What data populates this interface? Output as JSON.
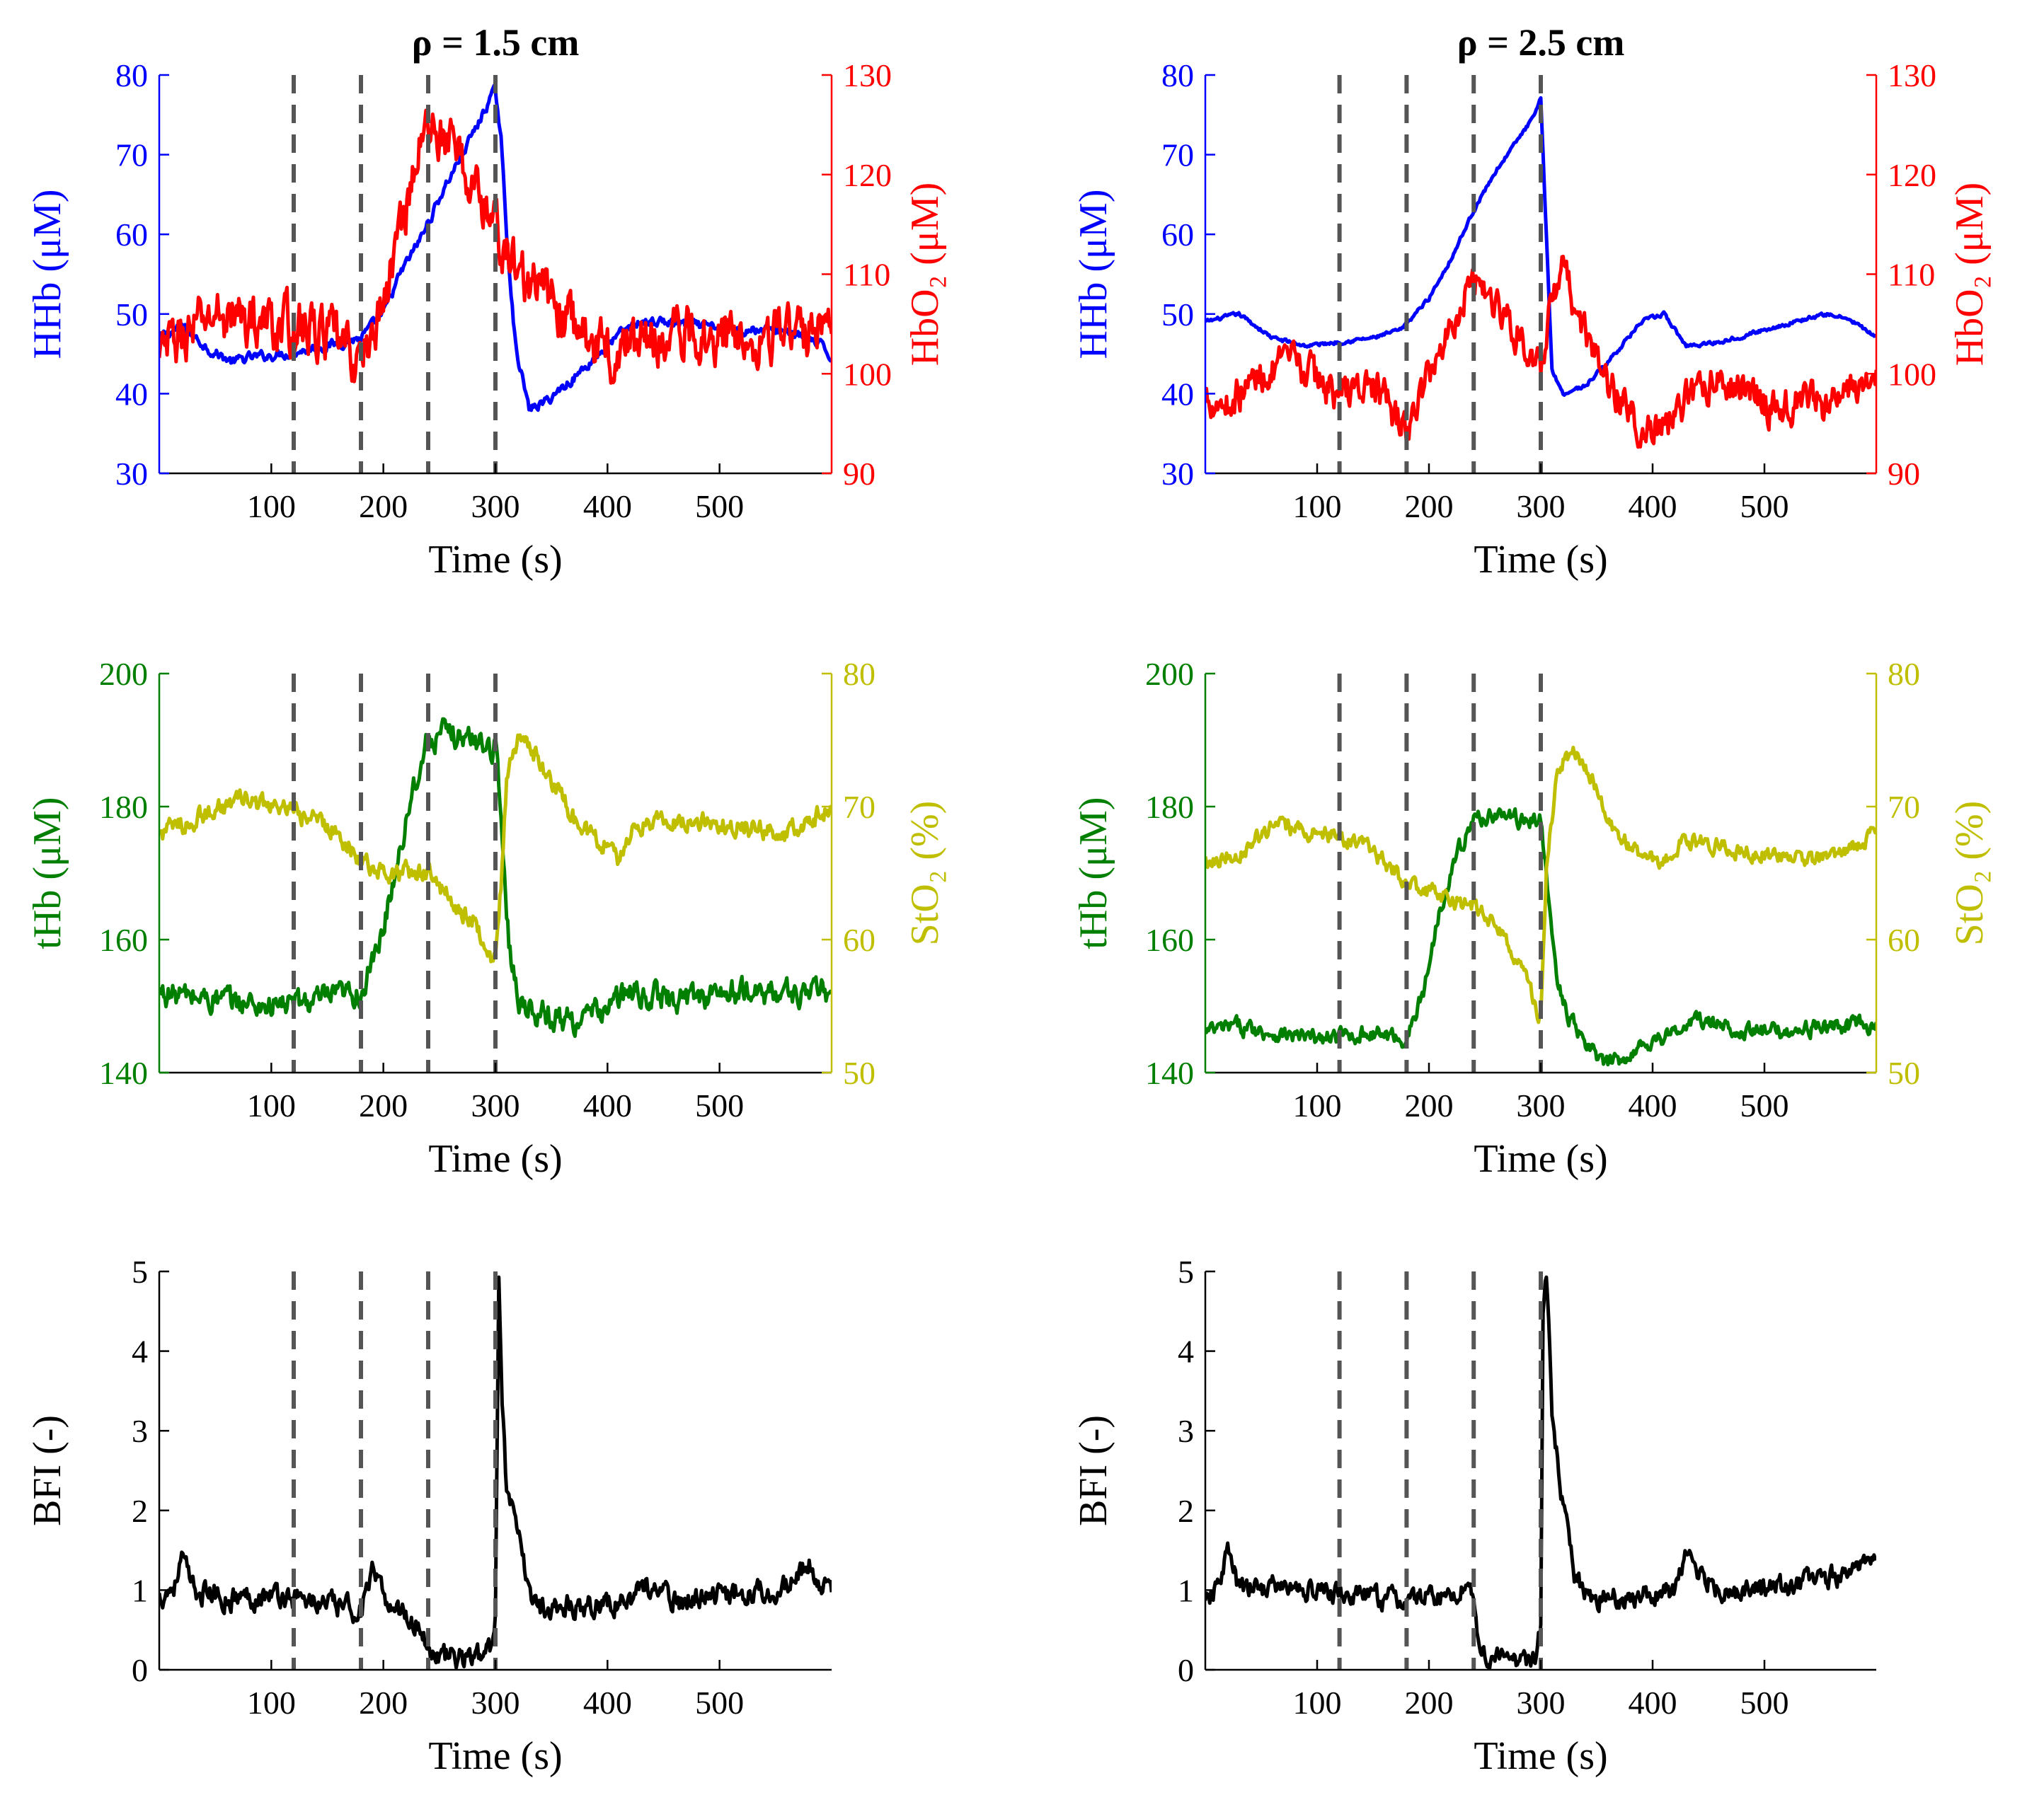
{
  "colors": {
    "hhb": "#0000ff",
    "hbo2": "#ff0000",
    "thb": "#007f00",
    "sto2": "#bfbf00",
    "bfi": "#000000",
    "marker": "#555555",
    "axis": "#000000"
  },
  "chart_data": [
    {
      "id": "top-left",
      "type": "line",
      "title": "ρ = 1.5 cm",
      "xlabel": "Time (s)",
      "xlim": [
        0,
        600
      ],
      "xticks": [
        100,
        200,
        300,
        400,
        500
      ],
      "ylabel_left": "HHb (μM)",
      "ylim_left": [
        30,
        80
      ],
      "yticks_left": [
        30,
        40,
        50,
        60,
        70,
        80
      ],
      "ylabel_right": "HbO₂ (μM)",
      "ylim_right": [
        90,
        130
      ],
      "yticks_right": [
        90,
        100,
        110,
        120,
        130
      ],
      "markers": [
        120,
        180,
        240,
        300
      ],
      "series": [
        {
          "name": "HHb",
          "axis": "left",
          "color": "hhb",
          "noise": 0.5,
          "x": [
            0,
            20,
            45,
            65,
            80,
            110,
            150,
            180,
            200,
            215,
            235,
            255,
            270,
            285,
            295,
            300,
            305,
            310,
            318,
            330,
            345,
            370,
            400,
            415,
            430,
            450,
            480,
            520,
            560,
            590,
            600
          ],
          "y": [
            47,
            48.5,
            45.5,
            44,
            44.5,
            45,
            46,
            47,
            50,
            55,
            60,
            66,
            70,
            74,
            77,
            78,
            72,
            60,
            46,
            38,
            39,
            42,
            46,
            48,
            49,
            49,
            48.5,
            48,
            48,
            46,
            44.5
          ]
        },
        {
          "name": "HbO₂",
          "axis": "right",
          "color": "hbo2",
          "noise": 2.2,
          "x": [
            0,
            10,
            50,
            100,
            150,
            180,
            200,
            220,
            235,
            245,
            260,
            275,
            290,
            310,
            330,
            345,
            360,
            380,
            400,
            420,
            450,
            500,
            550,
            580,
            600
          ],
          "y": [
            101,
            103,
            106,
            105,
            104,
            101,
            107,
            117,
            124,
            125,
            123,
            120,
            117,
            112,
            109,
            108,
            106,
            104,
            102,
            103,
            104,
            104,
            104,
            104,
            106
          ]
        }
      ]
    },
    {
      "id": "top-right",
      "type": "line",
      "title": "ρ = 2.5 cm",
      "xlabel": "Time (s)",
      "xlim": [
        0,
        600
      ],
      "xticks": [
        100,
        200,
        300,
        400,
        500
      ],
      "ylabel_left": "HHb (μM)",
      "ylim_left": [
        30,
        80
      ],
      "yticks_left": [
        30,
        40,
        50,
        60,
        70,
        80
      ],
      "ylabel_right": "HbO₂ (μM)",
      "ylim_right": [
        90,
        130
      ],
      "yticks_right": [
        90,
        100,
        110,
        120,
        130
      ],
      "markers": [
        120,
        180,
        240,
        300
      ],
      "series": [
        {
          "name": "HHb",
          "axis": "left",
          "color": "hhb",
          "noise": 0.2,
          "x": [
            0,
            30,
            60,
            90,
            120,
            150,
            175,
            200,
            220,
            240,
            260,
            280,
            295,
            300,
            305,
            310,
            320,
            340,
            360,
            390,
            410,
            430,
            460,
            500,
            540,
            560,
            580,
            600
          ],
          "y": [
            49,
            50,
            47,
            46,
            46.5,
            47,
            48,
            52,
            57,
            63,
            68,
            72,
            75,
            77,
            60,
            43,
            40,
            41,
            44,
            49,
            50,
            46,
            46.5,
            48,
            49.5,
            50,
            49,
            47
          ]
        },
        {
          "name": "HbO₂",
          "axis": "right",
          "color": "hbo2",
          "noise": 1.5,
          "x": [
            0,
            20,
            50,
            80,
            120,
            150,
            180,
            200,
            220,
            240,
            260,
            280,
            300,
            310,
            320,
            340,
            360,
            380,
            400,
            420,
            450,
            480,
            500,
            530,
            560,
            580,
            600
          ],
          "y": [
            98,
            97,
            100,
            101,
            98,
            99,
            94,
            100,
            105,
            110,
            107,
            104,
            100,
            107,
            110,
            104,
            99,
            96,
            94,
            96,
            99,
            99,
            97,
            97,
            97,
            98,
            101
          ]
        }
      ]
    },
    {
      "id": "mid-left",
      "type": "line",
      "title": "",
      "xlabel": "Time (s)",
      "xlim": [
        0,
        600
      ],
      "xticks": [
        100,
        200,
        300,
        400,
        500
      ],
      "ylabel_left": "tHb (μM)",
      "ylim_left": [
        140,
        200
      ],
      "yticks_left": [
        140,
        160,
        180,
        200
      ],
      "ylabel_right": "StO₂ (%)",
      "ylim_right": [
        50,
        80
      ],
      "yticks_right": [
        50,
        60,
        70,
        80
      ],
      "markers": [
        120,
        180,
        240,
        300
      ],
      "series": [
        {
          "name": "tHb",
          "axis": "left",
          "color": "thb",
          "noise": 1.6,
          "x": [
            0,
            50,
            100,
            150,
            180,
            195,
            210,
            225,
            240,
            260,
            280,
            300,
            305,
            312,
            320,
            340,
            360,
            380,
            420,
            460,
            500,
            550,
            600
          ],
          "y": [
            152,
            151,
            150,
            151,
            152,
            158,
            170,
            182,
            190,
            191,
            190,
            189,
            178,
            160,
            151,
            149,
            148,
            148,
            152,
            151,
            152,
            152,
            152
          ]
        },
        {
          "name": "StO₂",
          "axis": "right",
          "color": "sto2",
          "noise": 0.6,
          "x": [
            0,
            30,
            70,
            100,
            140,
            160,
            180,
            200,
            220,
            240,
            260,
            280,
            295,
            300,
            305,
            310,
            320,
            335,
            350,
            370,
            400,
            410,
            420,
            440,
            480,
            520,
            560,
            580,
            600
          ],
          "y": [
            68,
            69,
            70.5,
            70,
            69,
            68,
            66,
            65,
            65,
            65,
            63,
            61.5,
            59,
            58.5,
            64,
            72,
            75,
            74,
            72,
            69,
            67,
            66,
            68,
            69,
            69,
            68.5,
            68,
            69,
            70
          ]
        }
      ]
    },
    {
      "id": "mid-right",
      "type": "line",
      "title": "",
      "xlabel": "Time (s)",
      "xlim": [
        0,
        600
      ],
      "xticks": [
        100,
        200,
        300,
        400,
        500
      ],
      "ylabel_left": "tHb (μM)",
      "ylim_left": [
        140,
        200
      ],
      "yticks_left": [
        140,
        160,
        180,
        200
      ],
      "ylabel_right": "StO₂ (%)",
      "ylim_right": [
        50,
        80
      ],
      "yticks_right": [
        50,
        60,
        70,
        80
      ],
      "markers": [
        120,
        180,
        240,
        300
      ],
      "series": [
        {
          "name": "tHb",
          "axis": "left",
          "color": "thb",
          "noise": 1.0,
          "x": [
            0,
            30,
            60,
            100,
            150,
            180,
            195,
            210,
            225,
            240,
            260,
            280,
            300,
            305,
            312,
            320,
            340,
            360,
            380,
            400,
            420,
            440,
            460,
            500,
            560,
            600
          ],
          "y": [
            146,
            147,
            146,
            145,
            146,
            145,
            152,
            165,
            173,
            178,
            179,
            178,
            178,
            170,
            157,
            150,
            144,
            141,
            143,
            145,
            146,
            148,
            147,
            146,
            147,
            147
          ]
        },
        {
          "name": "StO₂",
          "axis": "right",
          "color": "sto2",
          "noise": 0.5,
          "x": [
            0,
            30,
            60,
            100,
            130,
            160,
            180,
            200,
            220,
            240,
            260,
            280,
            295,
            300,
            305,
            315,
            330,
            345,
            360,
            390,
            410,
            430,
            460,
            500,
            560,
            600
          ],
          "y": [
            66,
            66.5,
            68.5,
            68,
            67.5,
            66,
            64,
            63.5,
            63,
            62.5,
            61,
            58.5,
            55,
            54,
            65,
            73,
            74,
            72,
            69,
            66,
            66,
            67.5,
            67,
            66.5,
            66,
            68
          ]
        }
      ]
    },
    {
      "id": "bottom-left",
      "type": "line",
      "title": "",
      "xlabel": "Time (s)",
      "xlim": [
        0,
        600
      ],
      "xticks": [
        100,
        200,
        300,
        400,
        500
      ],
      "ylabel_left": "BFI (-)",
      "ylim_left": [
        0,
        5
      ],
      "yticks_left": [
        0,
        1,
        2,
        3,
        4,
        5
      ],
      "markers": [
        120,
        180,
        240,
        300
      ],
      "series": [
        {
          "name": "BFI",
          "axis": "left",
          "color": "bfi",
          "noise": 0.12,
          "x": [
            0,
            15,
            20,
            30,
            60,
            100,
            140,
            180,
            190,
            200,
            220,
            235,
            240,
            250,
            260,
            280,
            295,
            300,
            303,
            306,
            310,
            318,
            330,
            340,
            360,
            420,
            430,
            460,
            500,
            560,
            580,
            600
          ],
          "y": [
            0.9,
            1.1,
            1.4,
            1.0,
            0.9,
            0.95,
            0.85,
            0.75,
            1.2,
            0.9,
            0.7,
            0.5,
            0.25,
            0.18,
            0.15,
            0.15,
            0.2,
            0.8,
            5,
            3.5,
            2.2,
            1.8,
            1.0,
            0.8,
            0.8,
            0.85,
            1.1,
            0.85,
            0.95,
            1.05,
            1.3,
            0.9
          ]
        }
      ]
    },
    {
      "id": "bottom-right",
      "type": "line",
      "title": "",
      "xlabel": "Time (s)",
      "xlim": [
        0,
        600
      ],
      "xticks": [
        100,
        200,
        300,
        400,
        500
      ],
      "ylabel_left": "BFI (-)",
      "ylim_left": [
        0,
        5
      ],
      "yticks_left": [
        0,
        1,
        2,
        3,
        4,
        5
      ],
      "markers": [
        120,
        180,
        240,
        300
      ],
      "series": [
        {
          "name": "BFI",
          "axis": "left",
          "color": "bfi",
          "noise": 0.11,
          "x": [
            0,
            10,
            20,
            30,
            60,
            120,
            160,
            180,
            200,
            220,
            235,
            240,
            245,
            250,
            270,
            295,
            300,
            302,
            305,
            310,
            320,
            330,
            345,
            380,
            420,
            430,
            460,
            500,
            560,
            580,
            600
          ],
          "y": [
            0.8,
            1.0,
            1.5,
            1.0,
            1.05,
            0.95,
            0.9,
            0.85,
            0.95,
            0.9,
            1.1,
            0.9,
            0.3,
            0.15,
            0.12,
            0.15,
            0.5,
            4.5,
            5,
            3.2,
            2.0,
            1.2,
            0.9,
            0.9,
            1.0,
            1.4,
            1.0,
            1.0,
            1.15,
            1.3,
            1.3
          ]
        }
      ]
    }
  ]
}
